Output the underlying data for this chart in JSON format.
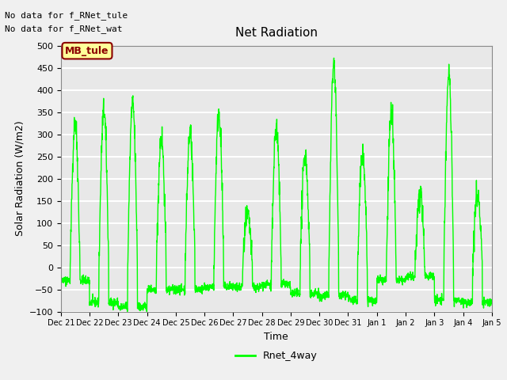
{
  "title": "Net Radiation",
  "ylabel": "Solar Radiation (W/m2)",
  "xlabel": "Time",
  "ylim": [
    -100,
    500
  ],
  "line_color": "#00FF00",
  "line_width": 1.0,
  "bg_color": "#E8E8E8",
  "grid_color": "#FFFFFF",
  "annotation_text1": "No data for f_RNet_tule",
  "annotation_text2": "No data for f_RNet_wat",
  "legend_label": "Rnet_4way",
  "legend_line_color": "#00FF00",
  "box_label": "MB_tule",
  "box_facecolor": "#FFFF99",
  "box_edgecolor": "#8B0000",
  "box_textcolor": "#8B0000",
  "yticks": [
    -100,
    -50,
    0,
    50,
    100,
    150,
    200,
    250,
    300,
    350,
    400,
    450,
    500
  ],
  "xtick_labels": [
    "Dec 21",
    "Dec 22",
    "Dec 23",
    "Dec 24",
    "Dec 25",
    "Dec 26",
    "Dec 27",
    "Dec 28",
    "Dec 29",
    "Dec 30",
    "Dec 31",
    "Jan 1",
    "Jan 2",
    "Jan 3",
    "Jan 4",
    "Jan 5"
  ]
}
